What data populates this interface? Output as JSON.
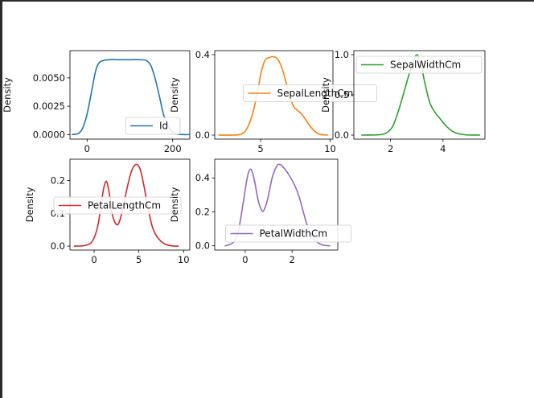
{
  "chart_data": [
    {
      "type": "line",
      "name": "Id",
      "xlabel": "",
      "ylabel": "Density",
      "xlim": [
        -40,
        240
      ],
      "ylim": [
        -0.0004,
        0.0074
      ],
      "xticks": [
        0,
        200
      ],
      "xtick_labels": [
        "0",
        "200"
      ],
      "yticks": [
        0.0,
        0.0025,
        0.005
      ],
      "ytick_labels": [
        "0.0000",
        "0.0025",
        "0.0050"
      ],
      "legend": {
        "label": "Id",
        "placement": "lower right"
      },
      "color": "#1f77b4",
      "series": [
        {
          "name": "Id",
          "x": [
            -35,
            -20,
            -10,
            0,
            10,
            20,
            30,
            50,
            75,
            100,
            125,
            140,
            150,
            160,
            170,
            180,
            195,
            210,
            225,
            238
          ],
          "y": [
            0.0,
            0.0001,
            0.0006,
            0.0018,
            0.0037,
            0.0056,
            0.0064,
            0.0066,
            0.0066,
            0.0066,
            0.0066,
            0.0065,
            0.006,
            0.0048,
            0.0032,
            0.0016,
            0.0004,
            5e-05,
            0.0,
            0.0
          ]
        }
      ]
    },
    {
      "type": "line",
      "name": "SepalLengthCm",
      "xlabel": "",
      "ylabel": "Density",
      "xlim": [
        1.7,
        10.2
      ],
      "ylim": [
        -0.02,
        0.42
      ],
      "xticks": [
        5,
        10
      ],
      "xtick_labels": [
        "5",
        "10"
      ],
      "yticks": [
        0.0,
        0.4
      ],
      "ytick_labels": [
        "0.0",
        "0.4"
      ],
      "legend": {
        "label": "SepalLengthCm",
        "placement": "center"
      },
      "color": "#ff7f0e",
      "series": [
        {
          "name": "SepalLengthCm",
          "x": [
            2.0,
            3.0,
            3.6,
            4.0,
            4.4,
            4.8,
            5.0,
            5.3,
            5.6,
            5.9,
            6.2,
            6.5,
            6.8,
            7.1,
            7.4,
            7.7,
            8.0,
            8.4,
            8.8,
            9.2,
            9.8
          ],
          "y": [
            0.0,
            0.0,
            0.005,
            0.03,
            0.1,
            0.22,
            0.3,
            0.37,
            0.385,
            0.39,
            0.38,
            0.34,
            0.27,
            0.19,
            0.14,
            0.12,
            0.1,
            0.06,
            0.025,
            0.005,
            0.0
          ]
        }
      ]
    },
    {
      "type": "line",
      "name": "SepalWidthCm",
      "xlabel": "",
      "ylabel": "Density",
      "xlim": [
        0.6,
        5.6
      ],
      "ylim": [
        -0.05,
        1.05
      ],
      "xticks": [
        2,
        4
      ],
      "xtick_labels": [
        "2",
        "4"
      ],
      "yticks": [
        0.0,
        0.5,
        1.0
      ],
      "ytick_labels": [
        "0.0",
        "0.5",
        "1.0"
      ],
      "legend": {
        "label": "SepalWidthCm",
        "placement": "top-right"
      },
      "color": "#2ca02c",
      "series": [
        {
          "name": "SepalWidthCm",
          "x": [
            0.9,
            1.6,
            1.9,
            2.1,
            2.3,
            2.5,
            2.7,
            2.85,
            3.0,
            3.15,
            3.3,
            3.5,
            3.7,
            3.9,
            4.1,
            4.4,
            4.8,
            5.4
          ],
          "y": [
            0.0,
            0.005,
            0.04,
            0.12,
            0.3,
            0.52,
            0.75,
            0.9,
            1.0,
            0.9,
            0.66,
            0.4,
            0.28,
            0.2,
            0.12,
            0.04,
            0.005,
            0.0
          ]
        }
      ]
    },
    {
      "type": "line",
      "name": "PetalLengthCm",
      "xlabel": "",
      "ylabel": "Density",
      "xlim": [
        -2.7,
        10.7
      ],
      "ylim": [
        -0.012,
        0.265
      ],
      "xticks": [
        0,
        5,
        10
      ],
      "xtick_labels": [
        "0",
        "5",
        "10"
      ],
      "yticks": [
        0.0,
        0.1,
        0.2
      ],
      "ytick_labels": [
        "0.0",
        "0.1",
        "0.2"
      ],
      "legend": {
        "label": "PetalLengthCm",
        "placement": "center left"
      },
      "color": "#d62728",
      "series": [
        {
          "name": "PetalLengthCm",
          "x": [
            -2.2,
            -1.0,
            -0.2,
            0.4,
            0.8,
            1.1,
            1.4,
            1.7,
            2.1,
            2.6,
            3.0,
            3.4,
            3.8,
            4.2,
            4.6,
            4.9,
            5.2,
            5.6,
            6.0,
            6.5,
            7.0,
            7.8,
            8.6,
            9.4
          ],
          "y": [
            0.0,
            0.002,
            0.015,
            0.06,
            0.13,
            0.18,
            0.197,
            0.16,
            0.09,
            0.065,
            0.09,
            0.14,
            0.19,
            0.23,
            0.248,
            0.247,
            0.23,
            0.18,
            0.12,
            0.06,
            0.03,
            0.008,
            0.001,
            0.0
          ]
        }
      ]
    },
    {
      "type": "line",
      "name": "PetalWidthCm",
      "xlabel": "",
      "ylabel": "Density",
      "xlim": [
        -1.3,
        3.95
      ],
      "ylim": [
        -0.025,
        0.51
      ],
      "xticks": [
        0,
        2
      ],
      "xtick_labels": [
        "0",
        "2"
      ],
      "yticks": [
        0.0,
        0.2,
        0.4
      ],
      "ytick_labels": [
        "0.0",
        "0.2",
        "0.4"
      ],
      "legend": {
        "label": "PetalWidthCm",
        "placement": "lower center"
      },
      "color": "#9467bd",
      "series": [
        {
          "name": "PetalWidthCm",
          "x": [
            -0.85,
            -0.5,
            -0.3,
            -0.1,
            0.1,
            0.25,
            0.4,
            0.55,
            0.7,
            0.8,
            0.95,
            1.15,
            1.35,
            1.5,
            1.7,
            1.9,
            2.1,
            2.3,
            2.5,
            2.7,
            3.0,
            3.3,
            3.6
          ],
          "y": [
            0.0,
            0.02,
            0.08,
            0.24,
            0.41,
            0.45,
            0.38,
            0.27,
            0.21,
            0.21,
            0.27,
            0.4,
            0.47,
            0.478,
            0.45,
            0.41,
            0.36,
            0.29,
            0.19,
            0.1,
            0.03,
            0.005,
            0.0
          ]
        }
      ]
    }
  ]
}
